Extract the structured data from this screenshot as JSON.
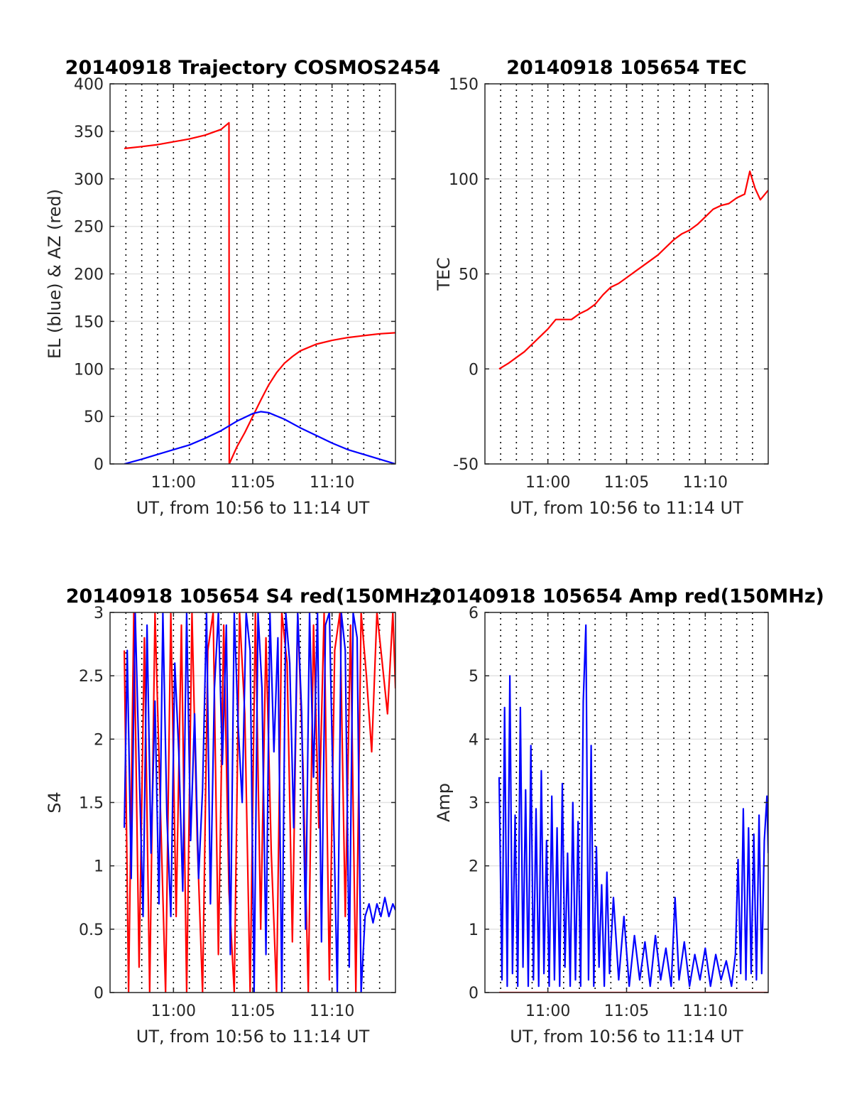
{
  "figure": {
    "background": "#ffffff"
  },
  "chart_data": [
    {
      "id": "traj",
      "type": "line",
      "title": "20140918 Trajectory COSMOS2454",
      "xlabel": "UT, from 10:56 to 11:14 UT",
      "ylabel": "EL (blue) & AZ (red)",
      "xlim": [
        "10:56:00",
        "11:14:00"
      ],
      "ylim": [
        0,
        400
      ],
      "yticks": [
        0,
        50,
        100,
        150,
        200,
        250,
        300,
        350,
        400
      ],
      "xticks": [
        "11:00",
        "11:05",
        "11:10"
      ],
      "grid": true,
      "series": [
        {
          "color": "#ff0000",
          "x": [
            "10:56:54",
            "10:58:00",
            "10:59:00",
            "11:00:00",
            "11:01:00",
            "11:02:00",
            "11:03:00",
            "11:03:30",
            "11:03:31",
            "11:04:00",
            "11:04:30",
            "11:05:00",
            "11:05:30",
            "11:06:00",
            "11:06:30",
            "11:07:00",
            "11:07:30",
            "11:08:00",
            "11:09:00",
            "11:10:00",
            "11:11:00",
            "11:12:00",
            "11:13:00",
            "11:14:00"
          ],
          "y": [
            332,
            334,
            336,
            339,
            342,
            346,
            352,
            359,
            0,
            18,
            33,
            50,
            67,
            83,
            96,
            106,
            113,
            119,
            126,
            130,
            133,
            135,
            137,
            138
          ]
        },
        {
          "color": "#0000ff",
          "x": [
            "10:56:54",
            "10:58:00",
            "10:59:00",
            "11:00:00",
            "11:01:00",
            "11:02:00",
            "11:03:00",
            "11:04:00",
            "11:05:00",
            "11:05:30",
            "11:06:00",
            "11:07:00",
            "11:08:00",
            "11:09:00",
            "11:10:00",
            "11:11:00",
            "11:12:00",
            "11:13:00",
            "11:14:00"
          ],
          "y": [
            0,
            5,
            10,
            15,
            20,
            27,
            35,
            45,
            53,
            55,
            54,
            47,
            38,
            30,
            22,
            15,
            10,
            5,
            0
          ]
        }
      ]
    },
    {
      "id": "tec",
      "type": "line",
      "title": "20140918 105654 TEC",
      "xlabel": "UT, from 10:56 to 11:14 UT",
      "ylabel": "TEC",
      "xlim": [
        "10:56:00",
        "11:14:00"
      ],
      "ylim": [
        -50,
        150
      ],
      "yticks": [
        -50,
        0,
        50,
        100,
        150
      ],
      "xticks": [
        "11:00",
        "11:05",
        "11:10"
      ],
      "grid": true,
      "series": [
        {
          "color": "#ff0000",
          "x": [
            "10:56:54",
            "10:57:30",
            "10:58:00",
            "10:58:30",
            "10:59:00",
            "10:59:30",
            "11:00:00",
            "11:00:30",
            "11:01:00",
            "11:01:30",
            "11:02:00",
            "11:02:30",
            "11:03:00",
            "11:03:30",
            "11:04:00",
            "11:04:30",
            "11:05:00",
            "11:05:30",
            "11:06:00",
            "11:06:30",
            "11:07:00",
            "11:07:30",
            "11:08:00",
            "11:08:30",
            "11:09:00",
            "11:09:30",
            "11:10:00",
            "11:10:30",
            "11:11:00",
            "11:11:30",
            "11:12:00",
            "11:12:30",
            "11:12:50",
            "11:13:10",
            "11:13:30",
            "11:14:00"
          ],
          "y": [
            0,
            3,
            6,
            9,
            13,
            17,
            21,
            26,
            26,
            26,
            29,
            31,
            34,
            39,
            43,
            45,
            48,
            51,
            54,
            57,
            60,
            64,
            68,
            71,
            73,
            76,
            80,
            84,
            86,
            87,
            90,
            92,
            104,
            95,
            89,
            94
          ]
        }
      ]
    },
    {
      "id": "s4",
      "type": "line",
      "title": "20140918 105654 S4 red(150MHz)",
      "xlabel": "UT, from 10:56 to 11:14 UT",
      "ylabel": "S4",
      "xlim": [
        "10:56:00",
        "11:14:00"
      ],
      "ylim": [
        0,
        3
      ],
      "yticks": [
        0,
        0.5,
        1,
        1.5,
        2,
        2.5,
        3
      ],
      "xticks": [
        "11:00",
        "11:05",
        "11:10"
      ],
      "grid": true,
      "series": [
        {
          "color": "#ff0000",
          "x": [
            "10:56:54",
            "10:57:10",
            "10:57:30",
            "10:57:50",
            "10:58:10",
            "10:58:30",
            "10:58:50",
            "10:59:10",
            "10:59:30",
            "10:59:50",
            "11:00:10",
            "11:00:30",
            "11:00:50",
            "11:01:10",
            "11:01:30",
            "11:01:50",
            "11:02:10",
            "11:02:30",
            "11:02:50",
            "11:03:10",
            "11:03:30",
            "11:03:50",
            "11:04:10",
            "11:04:30",
            "11:04:50",
            "11:05:10",
            "11:05:30",
            "11:05:50",
            "11:06:10",
            "11:06:30",
            "11:06:50",
            "11:07:10",
            "11:07:30",
            "11:07:50",
            "11:08:10",
            "11:08:30",
            "11:08:50",
            "11:09:10",
            "11:09:30",
            "11:09:50",
            "11:10:10",
            "11:10:30",
            "11:10:50",
            "11:11:10",
            "11:11:30",
            "11:11:50",
            "11:12:10",
            "11:12:30",
            "11:12:50",
            "11:13:10",
            "11:13:30",
            "11:13:50",
            "11:14:00"
          ],
          "y": [
            2.7,
            0,
            3,
            0.2,
            2.8,
            0,
            3,
            1.5,
            0,
            3,
            0.6,
            2.9,
            0,
            3,
            1.2,
            0,
            2.7,
            3,
            0.3,
            2.9,
            0.8,
            0,
            3,
            2.2,
            0,
            3,
            0.5,
            2.8,
            1.1,
            0,
            3,
            2.6,
            0.4,
            3,
            1.8,
            0,
            2.9,
            1.3,
            3,
            0.1,
            2.7,
            3,
            0.6,
            2.9,
            0,
            3,
            2.5,
            1.9,
            3,
            2.6,
            2.2,
            3,
            2.4
          ]
        },
        {
          "color": "#0000ff",
          "x": [
            "10:56:54",
            "10:57:05",
            "10:57:20",
            "10:57:35",
            "10:57:50",
            "10:58:05",
            "10:58:20",
            "10:58:35",
            "10:58:50",
            "10:59:05",
            "10:59:20",
            "10:59:35",
            "10:59:50",
            "11:00:05",
            "11:00:20",
            "11:00:35",
            "11:00:50",
            "11:01:05",
            "11:01:20",
            "11:01:35",
            "11:01:50",
            "11:02:05",
            "11:02:20",
            "11:02:35",
            "11:02:50",
            "11:03:05",
            "11:03:20",
            "11:03:35",
            "11:03:50",
            "11:04:05",
            "11:04:20",
            "11:04:35",
            "11:04:50",
            "11:05:05",
            "11:05:20",
            "11:05:35",
            "11:05:50",
            "11:06:05",
            "11:06:20",
            "11:06:35",
            "11:06:50",
            "11:07:05",
            "11:07:20",
            "11:07:35",
            "11:07:50",
            "11:08:05",
            "11:08:20",
            "11:08:35",
            "11:08:50",
            "11:09:05",
            "11:09:20",
            "11:09:35",
            "11:09:50",
            "11:10:05",
            "11:10:20",
            "11:10:35",
            "11:10:50",
            "11:11:05",
            "11:11:20",
            "11:11:35",
            "11:11:50",
            "11:12:05",
            "11:12:20",
            "11:12:35",
            "11:12:50",
            "11:13:05",
            "11:13:20",
            "11:13:35",
            "11:13:50",
            "11:14:00"
          ],
          "y": [
            1.3,
            2.7,
            0.9,
            3,
            1.8,
            0.6,
            2.9,
            1.1,
            2.3,
            0.7,
            3,
            1.4,
            0.6,
            2.6,
            1.9,
            0.8,
            3,
            1.2,
            2.2,
            0.9,
            1.6,
            3,
            0.7,
            2.4,
            3,
            1.8,
            2.9,
            0.3,
            3,
            2.1,
            1.5,
            3,
            2.7,
            0,
            3,
            2.4,
            0.3,
            3,
            1.9,
            2.8,
            0,
            3,
            2.6,
            1.3,
            3,
            2.2,
            0.5,
            3,
            1.7,
            3,
            0.4,
            2.9,
            3,
            1.5,
            0,
            3,
            2.7,
            0.2,
            3,
            2.8,
            0,
            0.6,
            0.7,
            0.55,
            0.7,
            0.6,
            0.75,
            0.6,
            0.7,
            0.65
          ]
        }
      ]
    },
    {
      "id": "amp",
      "type": "line",
      "title": "20140918 105654 Amp red(150MHz)",
      "xlabel": "UT, from 10:56 to 11:14 UT",
      "ylabel": "Amp",
      "xlim": [
        "10:56:00",
        "11:14:00"
      ],
      "ylim": [
        0,
        6
      ],
      "yticks": [
        0,
        1,
        2,
        3,
        4,
        5,
        6
      ],
      "xticks": [
        "11:00",
        "11:05",
        "11:10"
      ],
      "grid": true,
      "series": [
        {
          "color": "#0000ff",
          "x": [
            "10:56:54",
            "10:57:05",
            "10:57:15",
            "10:57:25",
            "10:57:35",
            "10:57:45",
            "10:57:55",
            "10:58:05",
            "10:58:15",
            "10:58:25",
            "10:58:35",
            "10:58:45",
            "10:58:55",
            "10:59:05",
            "10:59:15",
            "10:59:25",
            "10:59:35",
            "10:59:45",
            "10:59:55",
            "11:00:05",
            "11:00:15",
            "11:00:25",
            "11:00:35",
            "11:00:45",
            "11:00:55",
            "11:01:05",
            "11:01:15",
            "11:01:25",
            "11:01:35",
            "11:01:45",
            "11:01:55",
            "11:02:05",
            "11:02:15",
            "11:02:25",
            "11:02:35",
            "11:02:45",
            "11:02:55",
            "11:03:05",
            "11:03:15",
            "11:03:25",
            "11:03:35",
            "11:03:45",
            "11:03:55",
            "11:04:10",
            "11:04:30",
            "11:04:50",
            "11:05:10",
            "11:05:30",
            "11:05:50",
            "11:06:10",
            "11:06:30",
            "11:06:50",
            "11:07:10",
            "11:07:30",
            "11:07:50",
            "11:08:05",
            "11:08:20",
            "11:08:40",
            "11:09:00",
            "11:09:20",
            "11:09:40",
            "11:10:00",
            "11:10:20",
            "11:10:40",
            "11:11:00",
            "11:11:20",
            "11:11:40",
            "11:11:55",
            "11:12:05",
            "11:12:15",
            "11:12:25",
            "11:12:35",
            "11:12:45",
            "11:12:55",
            "11:13:05",
            "11:13:15",
            "11:13:25",
            "11:13:35",
            "11:13:45",
            "11:13:55",
            "11:14:00"
          ],
          "y": [
            3.4,
            0.2,
            4.5,
            0.1,
            5.0,
            0.3,
            2.8,
            0.1,
            4.5,
            0.4,
            3.2,
            0.1,
            3.9,
            0.2,
            2.9,
            0.1,
            3.5,
            0.3,
            2.4,
            0.1,
            3.1,
            0.2,
            2.6,
            0.1,
            3.3,
            0.4,
            2.2,
            0.1,
            3.0,
            0.2,
            2.7,
            0.1,
            4.6,
            5.8,
            0.2,
            3.9,
            0.1,
            2.3,
            0.4,
            1.7,
            0.1,
            1.9,
            0.3,
            1.5,
            0.2,
            1.2,
            0.1,
            0.9,
            0.2,
            0.8,
            0.1,
            0.9,
            0.2,
            0.7,
            0.1,
            1.5,
            0.2,
            0.8,
            0.1,
            0.6,
            0.2,
            0.7,
            0.1,
            0.6,
            0.2,
            0.5,
            0.1,
            0.6,
            2.1,
            0.3,
            2.9,
            0.2,
            2.6,
            0.3,
            2.5,
            0.2,
            2.8,
            0.3,
            2.4,
            3.1,
            2.2
          ]
        },
        {
          "color": "#ff0000",
          "x": [
            "10:56:54",
            "11:14:00"
          ],
          "y": [
            0,
            0
          ]
        }
      ]
    }
  ]
}
